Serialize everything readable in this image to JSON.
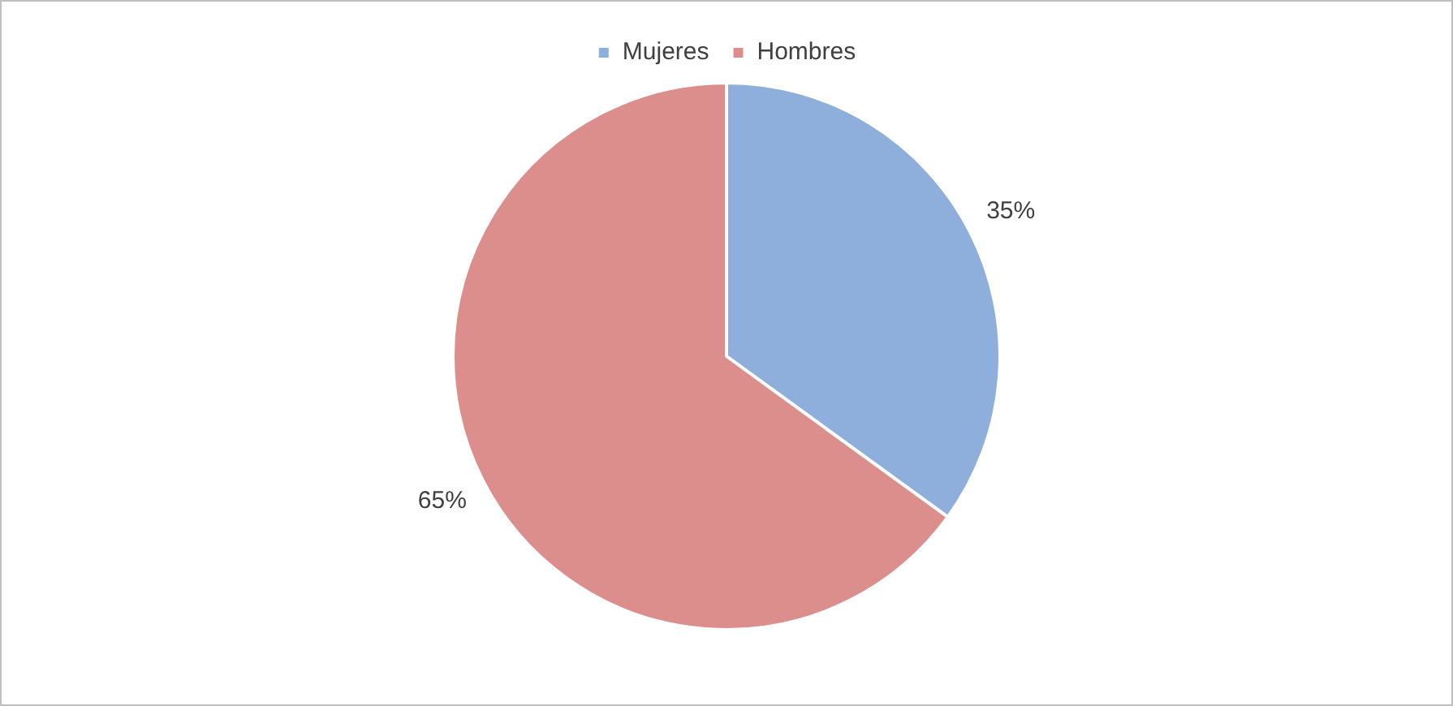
{
  "chart_data": {
    "type": "pie",
    "categories": [
      "Mujeres",
      "Hombres"
    ],
    "values": [
      35,
      65
    ],
    "colors": [
      "#8eaedb",
      "#dc8e8c"
    ],
    "value_labels": [
      "35%",
      "65%"
    ],
    "legend": "top"
  }
}
